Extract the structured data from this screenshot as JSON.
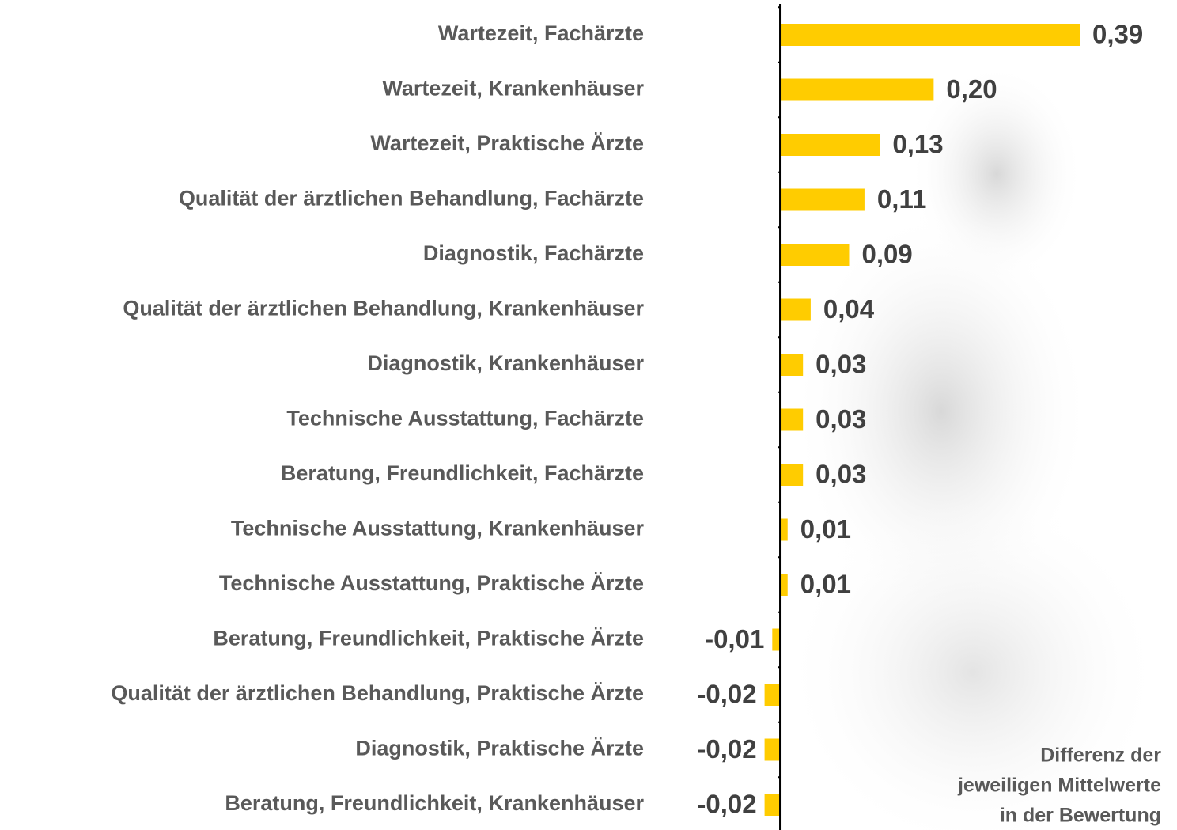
{
  "chart_data": {
    "type": "bar",
    "orientation": "horizontal",
    "categories": [
      "Wartezeit, Fachärzte",
      "Wartezeit, Krankenhäuser",
      "Wartezeit, Praktische Ärzte",
      "Qualität der ärztlichen Behandlung, Fachärzte",
      "Diagnostik, Fachärzte",
      "Qualität der ärztlichen Behandlung, Krankenhäuser",
      "Diagnostik, Krankenhäuser",
      "Technische Ausstattung, Fachärzte",
      "Beratung, Freundlichkeit, Fachärzte",
      "Technische Ausstattung, Krankenhäuser",
      "Technische Ausstattung, Praktische Ärzte",
      "Beratung, Freundlichkeit, Praktische Ärzte",
      "Qualität der ärztlichen Behandlung, Praktische Ärzte",
      "Diagnostik, Praktische Ärzte",
      "Beratung, Freundlichkeit, Krankenhäuser"
    ],
    "values": [
      0.39,
      0.2,
      0.13,
      0.11,
      0.09,
      0.04,
      0.03,
      0.03,
      0.03,
      0.01,
      0.01,
      -0.01,
      -0.02,
      -0.02,
      -0.02
    ],
    "value_labels": [
      "0,39",
      "0,20",
      "0,13",
      "0,11",
      "0,09",
      "0,04",
      "0,03",
      "0,03",
      "0,03",
      "0,01",
      "0,01",
      "-0,01",
      "-0,02",
      "-0,02",
      "-0,02"
    ],
    "color": "#ffcc00",
    "xlim": [
      -0.02,
      0.39
    ],
    "annotation": [
      "Differenz der",
      "jeweiligen Mittelwerte",
      "in der Bewertung"
    ]
  }
}
